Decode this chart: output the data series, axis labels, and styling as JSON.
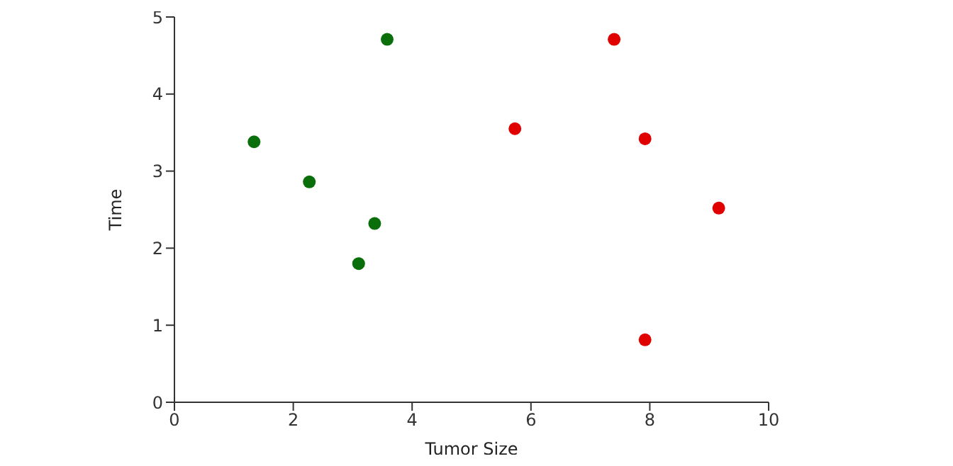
{
  "chart_data": {
    "type": "scatter",
    "xlabel": "Tumor Size",
    "ylabel": "Time",
    "xlim": [
      0,
      10
    ],
    "xticks": [
      0,
      2,
      4,
      6,
      8,
      10
    ],
    "ylim": [
      0,
      5
    ],
    "yticks": [
      0,
      1,
      2,
      3,
      4,
      5
    ],
    "grid": false,
    "legend": false,
    "marker": "circle",
    "series": [
      {
        "color": "#0a6e0a",
        "x": [
          1.34,
          2.27,
          3.37,
          3.1,
          3.58
        ],
        "values": [
          3.38,
          2.86,
          2.32,
          1.8,
          4.71
        ]
      },
      {
        "color": "#e00000",
        "x": [
          5.73,
          7.4,
          7.92,
          9.16,
          7.92
        ],
        "values": [
          3.55,
          4.71,
          3.42,
          2.52,
          0.81
        ]
      }
    ]
  }
}
